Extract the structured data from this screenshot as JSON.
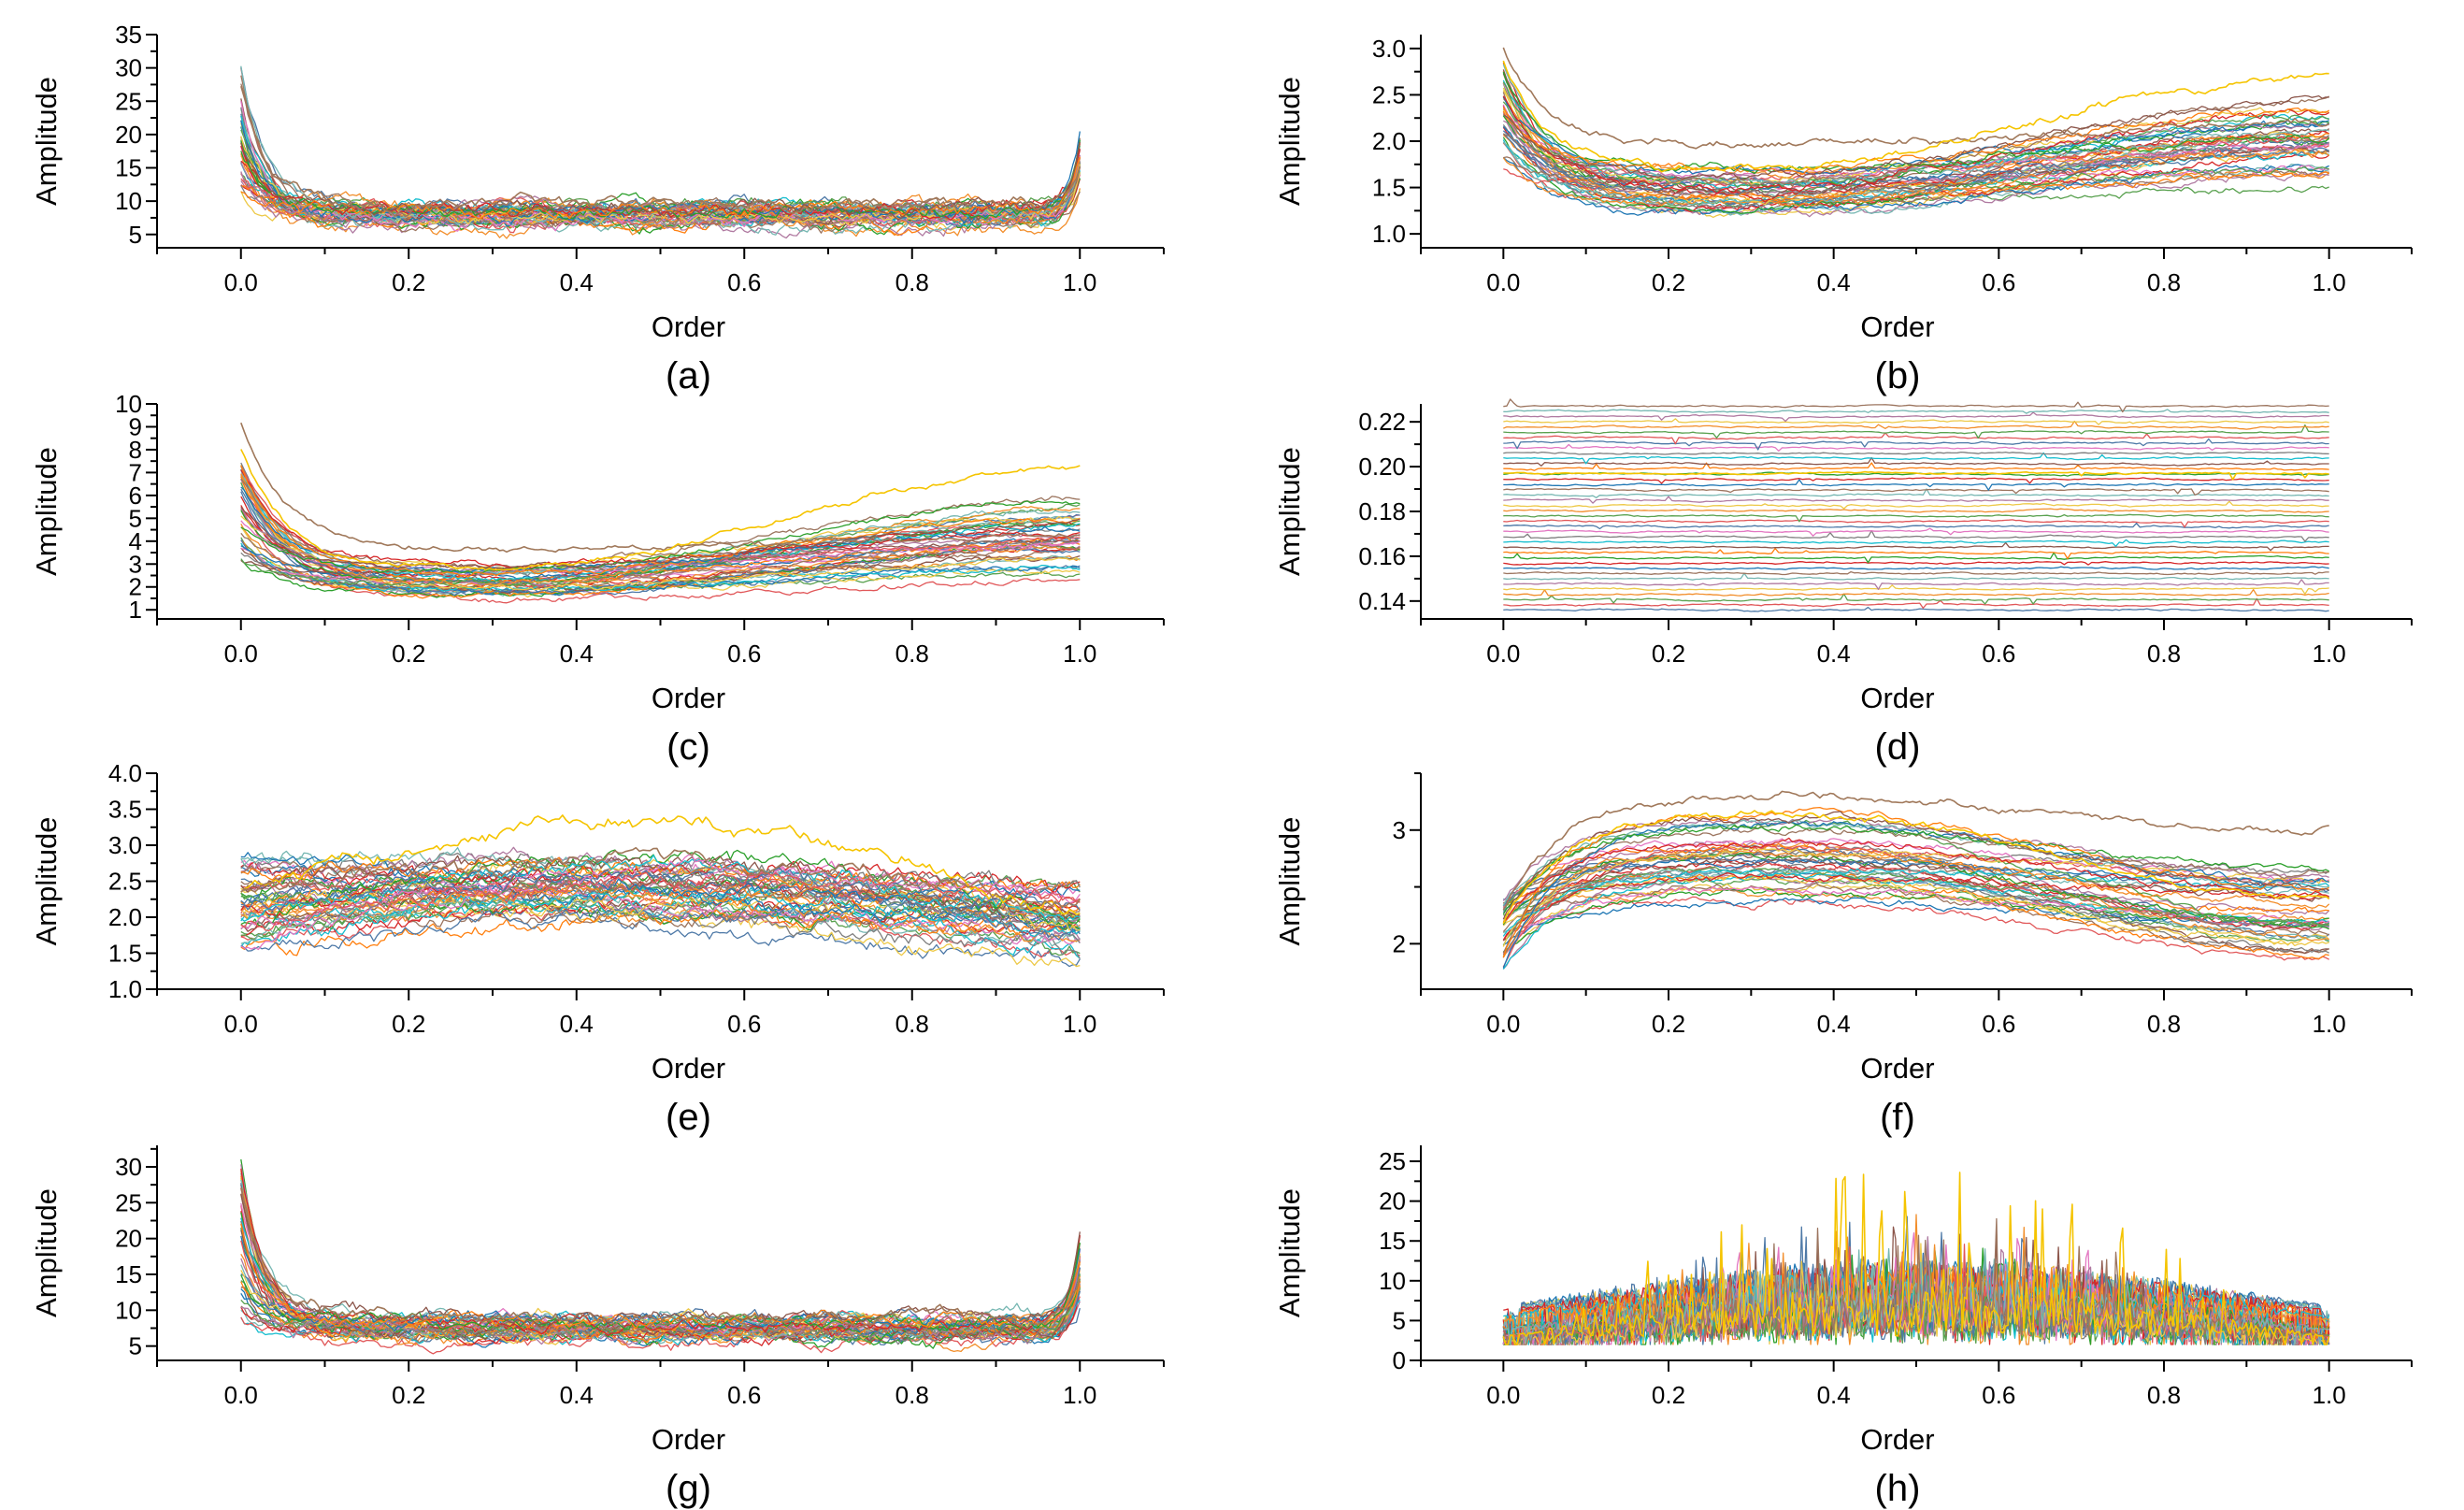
{
  "figure": {
    "panel_labels": [
      "(a)",
      "(b)",
      "(c)",
      "(d)",
      "(e)",
      "(f)",
      "(g)",
      "(h)"
    ]
  },
  "colors": {
    "series_palette": [
      "#4e79a7",
      "#e15759",
      "#59a14f",
      "#f28e2b",
      "#edc948",
      "#b07aa1",
      "#76b7b2",
      "#9c755f",
      "#1f77b4",
      "#d62728",
      "#2ca02c",
      "#ff7f0e",
      "#8c564b",
      "#17becf",
      "#7f7f7f",
      "#e377c2"
    ],
    "highlight_brown": "#a0785a",
    "highlight_yellow": "#f5c400"
  },
  "chart_data": [
    {
      "id": "a",
      "type": "line",
      "label": "(a)",
      "xlabel": "Order",
      "ylabel": "Amplitude",
      "xlim": [
        -0.1,
        1.1
      ],
      "ylim": [
        3,
        35
      ],
      "xticks": [
        "0.0",
        "0.2",
        "0.4",
        "0.6",
        "0.8",
        "1.0"
      ],
      "yticks": [
        "5",
        "10",
        "15",
        "20",
        "25",
        "30",
        "35"
      ],
      "ytick_values": [
        5,
        10,
        15,
        20,
        25,
        30,
        35
      ],
      "series_count": 45,
      "profile": "spike-decay-flat-rise",
      "start_range": [
        9,
        31
      ],
      "plateau_range": [
        6,
        10
      ],
      "end_range": [
        10,
        22
      ],
      "noise": 0.9,
      "highlights": [
        {
          "color": "brown",
          "start": 27,
          "plateau": 9.5,
          "end": 16
        }
      ]
    },
    {
      "id": "b",
      "type": "line",
      "label": "(b)",
      "xlabel": "Order",
      "ylabel": "Amplitude",
      "xlim": [
        -0.1,
        1.1
      ],
      "ylim": [
        0.85,
        3.15
      ],
      "xticks": [
        "0.0",
        "0.2",
        "0.4",
        "0.6",
        "0.8",
        "1.0"
      ],
      "yticks": [
        "1.0",
        "1.5",
        "2.0",
        "2.5",
        "3.0"
      ],
      "ytick_values": [
        1.0,
        1.5,
        2.0,
        2.5,
        3.0
      ],
      "series_count": 45,
      "profile": "decay-then-rise",
      "start_range": [
        1.7,
        2.9
      ],
      "plateau_range": [
        1.15,
        1.75
      ],
      "end_range": [
        1.45,
        2.5
      ],
      "noise": 0.04,
      "highlights": [
        {
          "color": "brown",
          "start": 3.02,
          "plateau": 1.95,
          "end": 2.2
        },
        {
          "color": "yellow",
          "start": 2.85,
          "plateau": 1.7,
          "end": 2.7
        }
      ]
    },
    {
      "id": "c",
      "type": "line",
      "label": "(c)",
      "xlabel": "Order",
      "ylabel": "Amplitude",
      "xlim": [
        -0.1,
        1.1
      ],
      "ylim": [
        0.6,
        10
      ],
      "xticks": [
        "0.0",
        "0.2",
        "0.4",
        "0.6",
        "0.8",
        "1.0"
      ],
      "yticks": [
        "1",
        "2",
        "3",
        "4",
        "5",
        "6",
        "7",
        "8",
        "9",
        "10"
      ],
      "ytick_values": [
        1,
        2,
        3,
        4,
        5,
        6,
        7,
        8,
        9,
        10
      ],
      "series_count": 45,
      "profile": "decay-then-rise",
      "start_range": [
        3,
        7.5
      ],
      "plateau_range": [
        1.3,
        3.1
      ],
      "end_range": [
        2.2,
        6.2
      ],
      "noise": 0.12,
      "highlights": [
        {
          "color": "brown",
          "start": 9.2,
          "plateau": 3.6,
          "end": 4.2
        },
        {
          "color": "yellow",
          "start": 8.0,
          "plateau": 2.8,
          "end": 7.2
        }
      ]
    },
    {
      "id": "d",
      "type": "line",
      "label": "(d)",
      "xlabel": "Order",
      "ylabel": "Amplitude",
      "xlim": [
        -0.1,
        1.1
      ],
      "ylim": [
        0.132,
        0.228
      ],
      "xticks": [
        "0.0",
        "0.2",
        "0.4",
        "0.6",
        "0.8",
        "1.0"
      ],
      "yticks": [
        "0.14",
        "0.16",
        "0.18",
        "0.20",
        "0.22"
      ],
      "ytick_values": [
        0.14,
        0.16,
        0.18,
        0.2,
        0.22
      ],
      "series_count": 40,
      "profile": "flat",
      "start_range": [
        0.136,
        0.227
      ],
      "plateau_range": [
        0.136,
        0.227
      ],
      "end_range": [
        0.136,
        0.227
      ],
      "noise": 0.0004,
      "highlights": [
        {
          "color": "yellow",
          "start": 0.197,
          "plateau": 0.197,
          "end": 0.197
        }
      ]
    },
    {
      "id": "e",
      "type": "line",
      "label": "(e)",
      "xlabel": "Order",
      "ylabel": "Amplitude",
      "xlim": [
        -0.1,
        1.1
      ],
      "ylim": [
        1.0,
        4.0
      ],
      "xticks": [
        "0.0",
        "0.2",
        "0.4",
        "0.6",
        "0.8",
        "1.0"
      ],
      "yticks": [
        "1.0",
        "1.5",
        "2.0",
        "2.5",
        "3.0",
        "3.5",
        "4.0"
      ],
      "ytick_values": [
        1.0,
        1.5,
        2.0,
        2.5,
        3.0,
        3.5,
        4.0
      ],
      "series_count": 50,
      "profile": "hump",
      "start_range": [
        1.5,
        2.9
      ],
      "plateau_range": [
        1.8,
        3.0
      ],
      "end_range": [
        1.3,
        2.6
      ],
      "noise": 0.1,
      "highlights": [
        {
          "color": "yellow",
          "start": 2.3,
          "plateau": 3.3,
          "end": 2.0
        },
        {
          "color": "brown",
          "start": 2.4,
          "plateau": 2.8,
          "end": 2.2
        }
      ]
    },
    {
      "id": "f",
      "type": "line",
      "label": "(f)",
      "xlabel": "Order",
      "ylabel": "Amplitude",
      "xlim": [
        -0.1,
        1.1
      ],
      "ylim": [
        1.6,
        3.5
      ],
      "xticks": [
        "0.0",
        "0.2",
        "0.4",
        "0.6",
        "0.8",
        "1.0"
      ],
      "yticks": [
        "2",
        "3"
      ],
      "ytick_values": [
        2,
        3
      ],
      "series_count": 45,
      "profile": "rise-then-decline",
      "start_range": [
        1.75,
        2.4
      ],
      "plateau_range": [
        2.25,
        3.2
      ],
      "end_range": [
        1.75,
        2.8
      ],
      "noise": 0.03,
      "highlights": [
        {
          "color": "brown",
          "start": 2.3,
          "plateau": 3.3,
          "end": 3.0
        },
        {
          "color": "yellow",
          "start": 2.2,
          "plateau": 3.15,
          "end": 2.4
        }
      ]
    },
    {
      "id": "g",
      "type": "line",
      "label": "(g)",
      "xlabel": "Order",
      "ylabel": "Amplitude",
      "xlim": [
        -0.1,
        1.1
      ],
      "ylim": [
        3,
        33
      ],
      "xticks": [
        "0.0",
        "0.2",
        "0.4",
        "0.6",
        "0.8",
        "1.0"
      ],
      "yticks": [
        "5",
        "10",
        "15",
        "20",
        "25",
        "30"
      ],
      "ytick_values": [
        5,
        10,
        15,
        20,
        25,
        30
      ],
      "series_count": 45,
      "profile": "spike-decay-flat-rise",
      "start_range": [
        9,
        31
      ],
      "plateau_range": [
        5.5,
        9.5
      ],
      "end_range": [
        10,
        22
      ],
      "noise": 0.9,
      "highlights": [
        {
          "color": "brown",
          "start": 27,
          "plateau": 9,
          "end": 15
        }
      ]
    },
    {
      "id": "h",
      "type": "line",
      "label": "(h)",
      "xlabel": "Order",
      "ylabel": "Amplitude",
      "xlim": [
        -0.1,
        1.1
      ],
      "ylim": [
        0,
        27
      ],
      "xticks": [
        "0.0",
        "0.2",
        "0.4",
        "0.6",
        "0.8",
        "1.0"
      ],
      "yticks": [
        "0",
        "5",
        "10",
        "15",
        "20",
        "25"
      ],
      "ytick_values": [
        0,
        5,
        10,
        15,
        20,
        25
      ],
      "series_count": 40,
      "profile": "spiky-noise",
      "start_range": [
        2,
        7
      ],
      "plateau_range": [
        2,
        22
      ],
      "end_range": [
        2,
        5
      ],
      "noise": 0,
      "highlights": [
        {
          "color": "yellow",
          "start": 3,
          "plateau": 24,
          "end": 3
        }
      ]
    }
  ]
}
